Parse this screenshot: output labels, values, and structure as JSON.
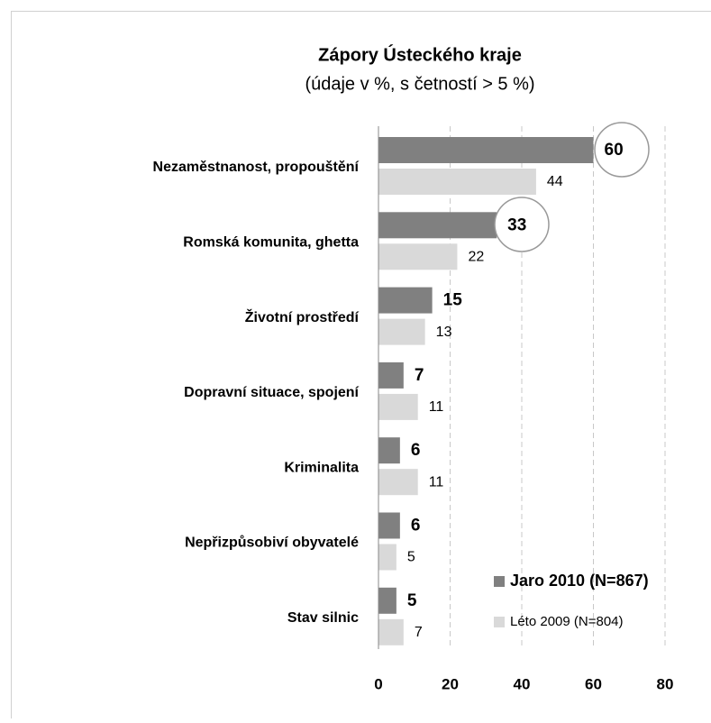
{
  "chart_data": {
    "type": "bar",
    "orientation": "horizontal",
    "title": "Zápory Ústeckého  kraje",
    "subtitle": "(údaje v %, s četností > 5 %)",
    "categories": [
      "Nezaměstnanost, propouštění",
      "Romská komunita, ghetta",
      "Životní prostředí",
      "Dopravní situace, spojení",
      "Kriminalita",
      "Nepřizpůsobiví obyvatelé",
      "Stav silnic"
    ],
    "series": [
      {
        "name": "Jaro 2010 (N=867)",
        "color": "#808080",
        "values": [
          60,
          33,
          15,
          7,
          6,
          6,
          5
        ]
      },
      {
        "name": "Léto 2009 (N=804)",
        "color": "#d9d9d9",
        "values": [
          44,
          22,
          13,
          11,
          11,
          5,
          7
        ]
      }
    ],
    "xlim": [
      0,
      80
    ],
    "xticks": [
      0,
      20,
      40,
      60,
      80
    ],
    "grid": true,
    "legend": "bottom-right"
  }
}
